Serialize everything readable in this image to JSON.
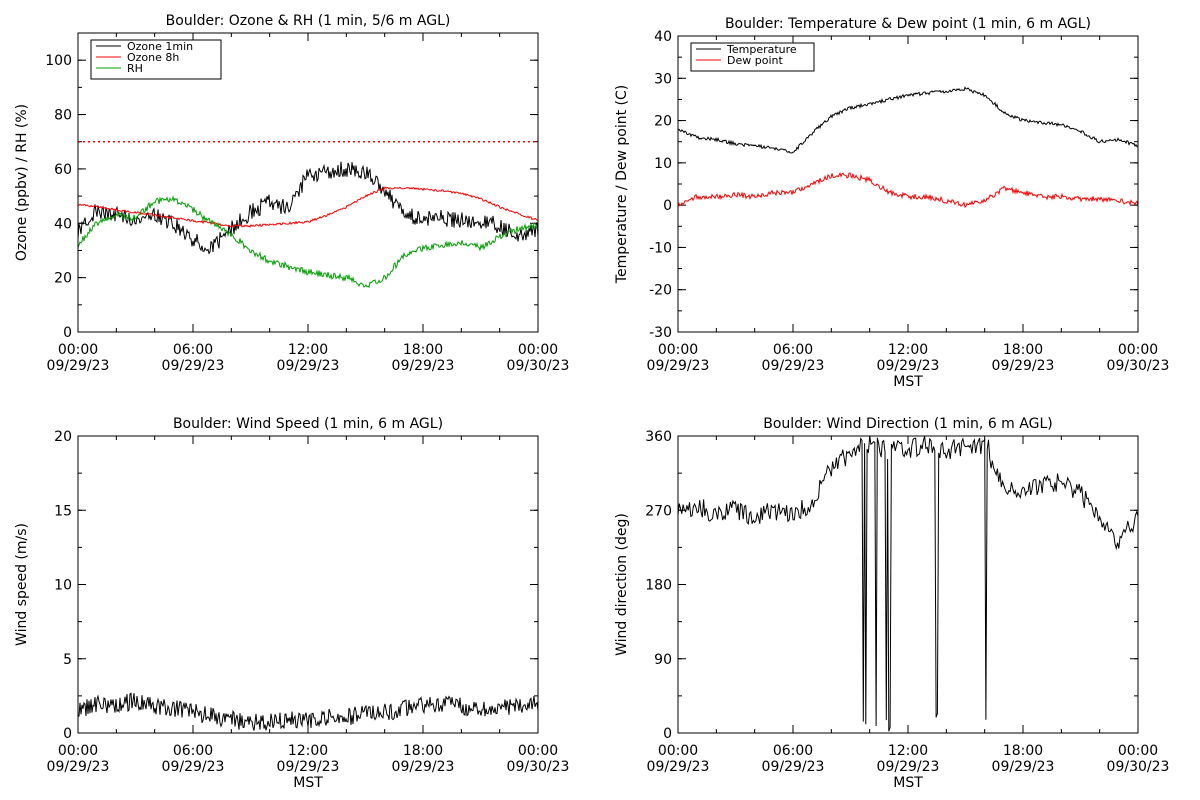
{
  "chart_data": [
    {
      "type": "line",
      "title": "Boulder: Ozone & RH (1 min, 5/6 m AGL)",
      "xlabel": "",
      "ylabel": "Ozone (ppbv) / RH (%)",
      "xlim": [
        "09/29/23 00:00",
        "09/30/23 00:00"
      ],
      "ylim": [
        0,
        110
      ],
      "yticks": [
        0,
        20,
        40,
        60,
        80,
        100
      ],
      "xtick_labels": [
        {
          "time": "00:00",
          "date": "09/29/23"
        },
        {
          "time": "06:00",
          "date": "09/29/23"
        },
        {
          "time": "12:00",
          "date": "09/29/23"
        },
        {
          "time": "18:00",
          "date": "09/29/23"
        },
        {
          "time": "00:00",
          "date": "09/30/23"
        }
      ],
      "legend_position": "top-left",
      "reference_line": {
        "y": 70,
        "color": "#ff0000",
        "style": "dotted"
      },
      "x_hours": [
        0,
        1,
        2,
        3,
        4,
        5,
        6,
        7,
        8,
        9,
        10,
        11,
        12,
        13,
        14,
        15,
        16,
        17,
        18,
        19,
        20,
        21,
        22,
        23,
        24
      ],
      "series": [
        {
          "name": "Ozone 1min",
          "color": "#000000",
          "values": [
            37,
            45,
            43,
            42,
            43,
            40,
            34,
            31,
            38,
            44,
            48,
            45,
            58,
            59,
            60,
            59,
            52,
            43,
            42,
            42,
            41,
            41,
            39,
            35,
            38
          ]
        },
        {
          "name": "Ozone 8h",
          "color": "#ff0000",
          "values": [
            47,
            46,
            45,
            44,
            43,
            42,
            41,
            40,
            39,
            39,
            39.5,
            40,
            40.5,
            43,
            46,
            50,
            53,
            53,
            52.5,
            52,
            51,
            49,
            46,
            43.5,
            41
          ]
        },
        {
          "name": "RH",
          "color": "#00a000",
          "values": [
            32,
            40,
            43,
            42,
            48,
            49,
            45,
            40,
            36,
            30,
            26,
            24,
            22,
            21,
            20,
            17,
            20,
            28,
            31,
            32,
            33,
            31,
            35,
            38,
            39
          ]
        }
      ]
    },
    {
      "type": "line",
      "title": "Boulder: Temperature & Dew point (1 min, 6 m AGL)",
      "xlabel": "MST",
      "ylabel": "Temperature / Dew point (C)",
      "xlim": [
        "09/29/23 00:00",
        "09/30/23 00:00"
      ],
      "ylim": [
        -30,
        40
      ],
      "yticks": [
        -30,
        -20,
        -10,
        0,
        10,
        20,
        30,
        40
      ],
      "xtick_labels": [
        {
          "time": "00:00",
          "date": "09/29/23"
        },
        {
          "time": "06:00",
          "date": "09/29/23"
        },
        {
          "time": "12:00",
          "date": "09/29/23"
        },
        {
          "time": "18:00",
          "date": "09/29/23"
        },
        {
          "time": "00:00",
          "date": "09/30/23"
        }
      ],
      "legend_position": "top-left",
      "x_hours": [
        0,
        1,
        2,
        3,
        4,
        5,
        6,
        7,
        8,
        9,
        10,
        11,
        12,
        13,
        14,
        15,
        16,
        17,
        18,
        19,
        20,
        21,
        22,
        23,
        24
      ],
      "series": [
        {
          "name": "Temperature",
          "color": "#000000",
          "values": [
            18,
            16,
            15.5,
            14.5,
            14,
            13.5,
            12.5,
            17,
            21,
            23,
            24,
            25,
            26,
            26.5,
            27,
            27.5,
            26,
            22,
            20,
            19.5,
            19,
            17.5,
            15,
            15.5,
            14
          ]
        },
        {
          "name": "Dew point",
          "color": "#ff0000",
          "values": [
            0,
            2,
            2,
            2.5,
            2,
            3,
            3,
            5,
            7,
            7,
            6,
            3,
            2,
            2,
            1,
            0,
            1,
            4,
            3,
            2,
            2,
            1.5,
            1.5,
            1,
            0.5
          ]
        }
      ]
    },
    {
      "type": "line",
      "title": "Boulder: Wind Speed (1 min, 6 m AGL)",
      "xlabel": "MST",
      "ylabel": "Wind speed (m/s)",
      "xlim": [
        "09/29/23 00:00",
        "09/30/23 00:00"
      ],
      "ylim": [
        0,
        20
      ],
      "yticks": [
        0,
        5,
        10,
        15,
        20
      ],
      "xtick_labels": [
        {
          "time": "00:00",
          "date": "09/29/23"
        },
        {
          "time": "06:00",
          "date": "09/29/23"
        },
        {
          "time": "12:00",
          "date": "09/29/23"
        },
        {
          "time": "18:00",
          "date": "09/29/23"
        },
        {
          "time": "00:00",
          "date": "09/30/23"
        }
      ],
      "x_hours": [
        0,
        1,
        2,
        3,
        4,
        5,
        6,
        7,
        8,
        9,
        10,
        11,
        12,
        13,
        14,
        15,
        16,
        17,
        18,
        19,
        20,
        21,
        22,
        23,
        24
      ],
      "series": [
        {
          "color": "#000000",
          "values": [
            1.5,
            2,
            1.8,
            2.2,
            1.8,
            1.7,
            1.4,
            1.1,
            0.9,
            0.7,
            0.8,
            0.9,
            0.8,
            1,
            1.1,
            1.3,
            1.4,
            1.6,
            1.8,
            1.9,
            1.8,
            1.5,
            1.6,
            1.8,
            2
          ]
        }
      ]
    },
    {
      "type": "line",
      "title": "Boulder: Wind Direction (1 min, 6 m AGL)",
      "xlabel": "MST",
      "ylabel": "Wind direction (deg)",
      "xlim": [
        "09/29/23 00:00",
        "09/30/23 00:00"
      ],
      "ylim": [
        0,
        360
      ],
      "yticks": [
        0,
        90,
        180,
        270,
        360
      ],
      "xtick_labels": [
        {
          "time": "00:00",
          "date": "09/29/23"
        },
        {
          "time": "06:00",
          "date": "09/29/23"
        },
        {
          "time": "12:00",
          "date": "09/29/23"
        },
        {
          "time": "18:00",
          "date": "09/29/23"
        },
        {
          "time": "00:00",
          "date": "09/30/23"
        }
      ],
      "x_hours": [
        0,
        1,
        2,
        3,
        4,
        5,
        6,
        7,
        8,
        9,
        10,
        11,
        12,
        13,
        14,
        15,
        16,
        17,
        18,
        19,
        20,
        21,
        22,
        23,
        24
      ],
      "series": [
        {
          "color": "#000000",
          "values": [
            270,
            275,
            265,
            270,
            260,
            270,
            265,
            280,
            320,
            340,
            350,
            340,
            345,
            350,
            340,
            350,
            345,
            300,
            290,
            300,
            305,
            290,
            260,
            230,
            265
          ]
        }
      ]
    }
  ]
}
